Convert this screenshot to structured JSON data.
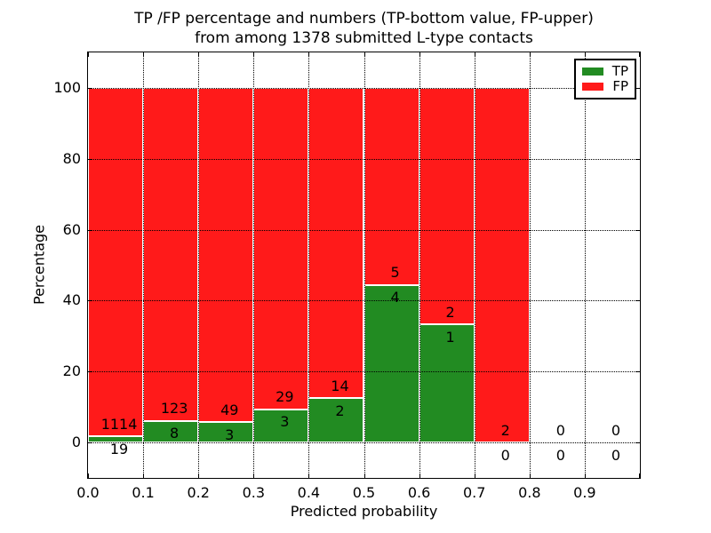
{
  "title": {
    "line1": "TP /FP percentage and numbers (TP-bottom value, FP-upper)",
    "line2": "from among 1378 submitted L-type contacts"
  },
  "x_axis": {
    "label": "Predicted probability",
    "tick_labels": [
      "0.0",
      "0.1",
      "0.2",
      "0.3",
      "0.4",
      "0.5",
      "0.6",
      "0.7",
      "0.8",
      "0.9"
    ],
    "lim": [
      0.0,
      1.0
    ]
  },
  "y_axis": {
    "label": "Percentage",
    "tick_labels": [
      "0",
      "20",
      "40",
      "60",
      "80",
      "100"
    ],
    "tick_values": [
      0,
      20,
      40,
      60,
      80,
      100
    ],
    "lim": [
      -10,
      110
    ]
  },
  "legend": {
    "position": "upper right",
    "items": [
      {
        "label": "TP",
        "color": "#228B22"
      },
      {
        "label": "FP",
        "color": "#ff1a1a"
      }
    ]
  },
  "chart_data": {
    "type": "bar",
    "stacked": true,
    "normalized": "each bin scaled to 100%, green segment = TP/(TP+FP)*100",
    "title": "TP /FP percentage and numbers (TP-bottom value, FP-upper) from among 1378 submitted L-type contacts",
    "xlabel": "Predicted probability",
    "ylabel": "Percentage",
    "total_contacts": 1378,
    "bin_width": 0.1,
    "grid": {
      "style": "dotted",
      "axes": "both",
      "on_top": true
    },
    "colors": {
      "tp": "#228B22",
      "fp": "#ff1a1a",
      "bar_edge": "#ffffff"
    },
    "bins": [
      {
        "x_range": [
          0.0,
          0.1
        ],
        "tp_count": 19,
        "fp_count": 1114,
        "tp_pct": 1.7,
        "fp_pct": 98.3
      },
      {
        "x_range": [
          0.1,
          0.2
        ],
        "tp_count": 8,
        "fp_count": 123,
        "tp_pct": 6.1,
        "fp_pct": 93.9
      },
      {
        "x_range": [
          0.2,
          0.3
        ],
        "tp_count": 3,
        "fp_count": 49,
        "tp_pct": 5.8,
        "fp_pct": 94.2
      },
      {
        "x_range": [
          0.3,
          0.4
        ],
        "tp_count": 3,
        "fp_count": 29,
        "tp_pct": 9.4,
        "fp_pct": 90.6
      },
      {
        "x_range": [
          0.4,
          0.5
        ],
        "tp_count": 2,
        "fp_count": 14,
        "tp_pct": 12.5,
        "fp_pct": 87.5
      },
      {
        "x_range": [
          0.5,
          0.6
        ],
        "tp_count": 4,
        "fp_count": 5,
        "tp_pct": 44.4,
        "fp_pct": 55.6
      },
      {
        "x_range": [
          0.6,
          0.7
        ],
        "tp_count": 1,
        "fp_count": 2,
        "tp_pct": 33.3,
        "fp_pct": 66.7
      },
      {
        "x_range": [
          0.7,
          0.8
        ],
        "tp_count": 0,
        "fp_count": 2,
        "tp_pct": 0.0,
        "fp_pct": 100.0
      },
      {
        "x_range": [
          0.8,
          0.9
        ],
        "tp_count": 0,
        "fp_count": 0,
        "tp_pct": null,
        "fp_pct": null
      },
      {
        "x_range": [
          0.9,
          1.0
        ],
        "tp_count": 0,
        "fp_count": 0,
        "tp_pct": null,
        "fp_pct": null
      }
    ]
  }
}
